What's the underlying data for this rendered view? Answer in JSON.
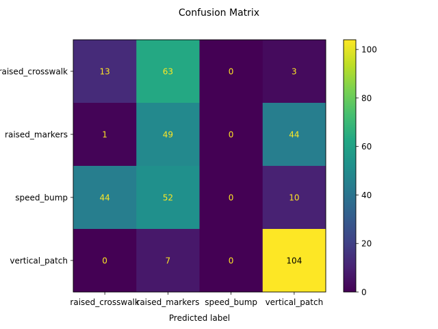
{
  "chart_data": {
    "type": "heatmap",
    "title": "Confusion Matrix",
    "xlabel": "Predicted label",
    "ylabel": "",
    "x_categories": [
      "raised_crosswalk",
      "raised_markers",
      "speed_bump",
      "vertical_patch"
    ],
    "y_categories": [
      "raised_crosswalk",
      "raised_markers",
      "speed_bump",
      "vertical_patch"
    ],
    "values": [
      [
        13,
        63,
        0,
        3
      ],
      [
        1,
        49,
        0,
        44
      ],
      [
        44,
        52,
        0,
        10
      ],
      [
        0,
        7,
        0,
        104
      ]
    ],
    "colormap": "viridis",
    "vmin": 0,
    "vmax": 104,
    "colorbar_ticks": [
      0,
      20,
      40,
      60,
      80,
      100
    ],
    "grid": false
  }
}
